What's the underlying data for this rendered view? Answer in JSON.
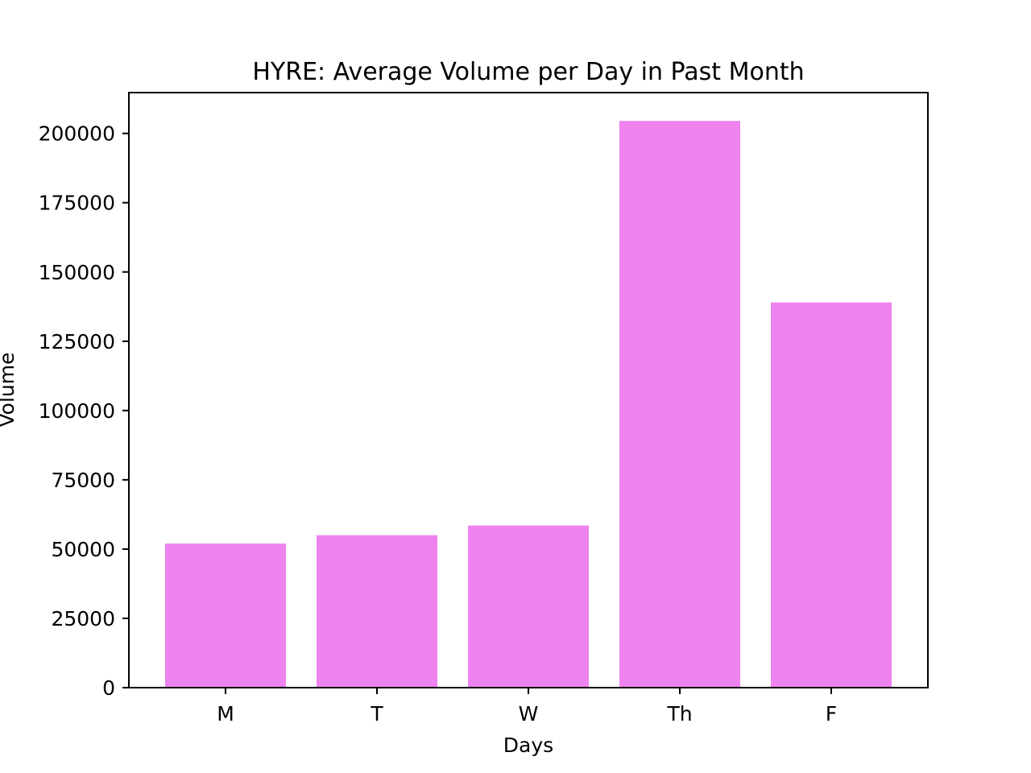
{
  "chart_data": {
    "type": "bar",
    "title": "HYRE: Average Volume per Day in Past Month",
    "xlabel": "Days",
    "ylabel": "Volume",
    "categories": [
      "M",
      "T",
      "W",
      "Th",
      "F"
    ],
    "values": [
      52000,
      55000,
      58500,
      204500,
      139000
    ],
    "ylim": [
      0,
      214725
    ],
    "yticks": [
      0,
      25000,
      50000,
      75000,
      100000,
      125000,
      150000,
      175000,
      200000
    ],
    "grid": false,
    "bar_color": "#ee82ee"
  }
}
